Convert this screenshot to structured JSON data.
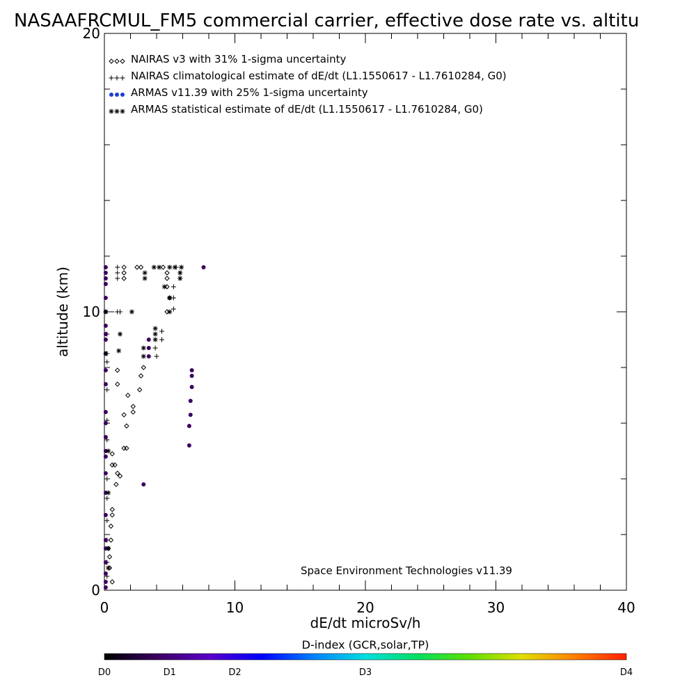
{
  "chart_data": {
    "type": "scatter",
    "title": "NASAAFRCMUL_FM5 commercial carrier, effective dose rate vs. altitu",
    "xlabel": "dE/dt microSv/h",
    "ylabel": "altitude (km)",
    "xlim": [
      0,
      40
    ],
    "ylim": [
      0,
      20
    ],
    "x_ticks": [
      0,
      10,
      20,
      30,
      40
    ],
    "x_tick_labels": [
      "0",
      "10",
      "20",
      "30",
      "40"
    ],
    "y_ticks": [
      0,
      10,
      20
    ],
    "y_tick_labels": [
      "0",
      "10",
      "20"
    ],
    "y_minor_step": 2,
    "x_minor_step": 2,
    "grid": false,
    "legend_position": "top-left",
    "legend": [
      {
        "symbol": "◇◇◇",
        "marker": "diamond",
        "color": "#000000",
        "label": "NAIRAS v3 with 31% 1-sigma uncertainty"
      },
      {
        "symbol": "+++",
        "marker": "plus",
        "color": "#000000",
        "label": "NAIRAS climatological estimate of dE/dt (L1.1550617 - L1.7610284, G0)"
      },
      {
        "symbol": "●●●",
        "marker": "dot",
        "color": "#1a3fd6",
        "label": "ARMAS v11.39 with 25% 1-sigma uncertainty"
      },
      {
        "symbol": "***",
        "marker": "asterisk",
        "color": "#000000",
        "label": "ARMAS statistical estimate of dE/dt (L1.1550617 - L1.7610284, G0)"
      }
    ],
    "annotation": "Space Environment Technologies v11.39",
    "colorbar": {
      "title": "D-index (GCR,solar,TP)",
      "labels": [
        {
          "label": "D0",
          "value": 0
        },
        {
          "label": "D1",
          "value": 1
        },
        {
          "label": "D2",
          "value": 2
        },
        {
          "label": "D3",
          "value": 3
        },
        {
          "label": "D4",
          "value": 4
        }
      ],
      "label_positions": [
        0,
        0.125,
        0.25,
        0.5,
        1.0
      ],
      "colors": [
        "#000000",
        "#3a0060",
        "#5a00c8",
        "#0000ff",
        "#0080ff",
        "#00e0e0",
        "#00e060",
        "#60e000",
        "#e0e000",
        "#ff8000",
        "#ff2000"
      ]
    },
    "series": [
      {
        "name": "NAIRAS v3",
        "marker": "diamond",
        "color": "#000000",
        "points": [
          [
            0.6,
            0.3
          ],
          [
            0.4,
            0.8
          ],
          [
            0.4,
            1.2
          ],
          [
            0.3,
            1.5
          ],
          [
            0.5,
            1.8
          ],
          [
            0.5,
            2.3
          ],
          [
            0.6,
            2.7
          ],
          [
            0.6,
            2.9
          ],
          [
            0.9,
            3.8
          ],
          [
            1.0,
            4.2
          ],
          [
            0.8,
            4.5
          ],
          [
            1.2,
            4.1
          ],
          [
            0.6,
            4.5
          ],
          [
            0.6,
            4.9
          ],
          [
            1.5,
            5.1
          ],
          [
            1.7,
            5.1
          ],
          [
            1.7,
            5.9
          ],
          [
            1.5,
            6.3
          ],
          [
            2.2,
            6.4
          ],
          [
            2.2,
            6.6
          ],
          [
            1.8,
            7.0
          ],
          [
            2.7,
            7.2
          ],
          [
            1.0,
            7.4
          ],
          [
            2.8,
            7.7
          ],
          [
            1.0,
            7.9
          ],
          [
            3.0,
            8.0
          ],
          [
            4.8,
            10.0
          ],
          [
            5.0,
            10.5
          ],
          [
            4.8,
            10.9
          ],
          [
            4.8,
            11.2
          ],
          [
            4.8,
            11.4
          ],
          [
            1.5,
            11.2
          ],
          [
            1.5,
            11.4
          ],
          [
            1.5,
            11.6
          ],
          [
            2.5,
            11.6
          ],
          [
            2.8,
            11.6
          ],
          [
            4.5,
            11.6
          ]
        ]
      },
      {
        "name": "NAIRAS climatological estimate",
        "marker": "plus",
        "color": "#000000",
        "points": [
          [
            0.2,
            0.5
          ],
          [
            0.2,
            1.0
          ],
          [
            0.2,
            1.8
          ],
          [
            0.2,
            2.5
          ],
          [
            0.2,
            3.3
          ],
          [
            0.2,
            4.0
          ],
          [
            0.2,
            5.4
          ],
          [
            0.2,
            6.1
          ],
          [
            0.2,
            7.2
          ],
          [
            0.2,
            8.2
          ],
          [
            0.2,
            8.5
          ],
          [
            0.2,
            9.2
          ],
          [
            1.0,
            10.0
          ],
          [
            1.2,
            10.0
          ],
          [
            1.0,
            11.4
          ],
          [
            1.0,
            11.2
          ],
          [
            1.0,
            11.6
          ],
          [
            4.0,
            8.4
          ],
          [
            3.9,
            8.7
          ],
          [
            4.4,
            9.0
          ],
          [
            4.4,
            9.3
          ],
          [
            5.3,
            10.1
          ],
          [
            5.3,
            10.5
          ],
          [
            5.3,
            10.9
          ],
          [
            5.8,
            11.2
          ],
          [
            5.8,
            11.4
          ],
          [
            5.5,
            11.6
          ]
        ]
      },
      {
        "name": "ARMAS v11.39",
        "marker": "dot",
        "color": "#3a0060",
        "points": [
          [
            0.1,
            0.1
          ],
          [
            0.1,
            0.3
          ],
          [
            0.1,
            0.6
          ],
          [
            0.1,
            1.0
          ],
          [
            0.1,
            1.5
          ],
          [
            0.1,
            1.8
          ],
          [
            0.1,
            2.7
          ],
          [
            0.1,
            3.5
          ],
          [
            0.1,
            4.2
          ],
          [
            0.1,
            4.8
          ],
          [
            0.1,
            5.0
          ],
          [
            0.1,
            5.5
          ],
          [
            0.1,
            6.0
          ],
          [
            0.1,
            6.4
          ],
          [
            0.1,
            7.4
          ],
          [
            0.1,
            7.9
          ],
          [
            0.1,
            8.5
          ],
          [
            0.1,
            9.0
          ],
          [
            0.1,
            9.2
          ],
          [
            0.1,
            9.5
          ],
          [
            0.1,
            10.0
          ],
          [
            0.1,
            10.5
          ],
          [
            0.1,
            11.0
          ],
          [
            0.1,
            11.2
          ],
          [
            0.1,
            11.4
          ],
          [
            0.1,
            11.6
          ],
          [
            3.0,
            3.8
          ],
          [
            6.5,
            5.2
          ],
          [
            6.5,
            5.9
          ],
          [
            6.6,
            6.3
          ],
          [
            6.6,
            6.8
          ],
          [
            6.7,
            7.3
          ],
          [
            6.7,
            7.7
          ],
          [
            6.7,
            7.9
          ],
          [
            3.4,
            8.4
          ],
          [
            3.4,
            8.7
          ],
          [
            3.4,
            9.0
          ],
          [
            7.6,
            11.6
          ]
        ]
      },
      {
        "name": "ARMAS statistical estimate",
        "marker": "asterisk",
        "color": "#000000",
        "points": [
          [
            0.3,
            0.8
          ],
          [
            0.3,
            1.5
          ],
          [
            0.3,
            3.5
          ],
          [
            0.3,
            5.0
          ],
          [
            0.1,
            8.5
          ],
          [
            0.1,
            10.0
          ],
          [
            2.1,
            10.0
          ],
          [
            1.2,
            9.2
          ],
          [
            1.1,
            8.6
          ],
          [
            3.0,
            8.4
          ],
          [
            3.0,
            8.7
          ],
          [
            3.9,
            9.0
          ],
          [
            3.9,
            9.2
          ],
          [
            3.9,
            9.4
          ],
          [
            5.0,
            10.0
          ],
          [
            4.6,
            10.9
          ],
          [
            5.0,
            10.5
          ],
          [
            3.1,
            11.2
          ],
          [
            3.1,
            11.4
          ],
          [
            5.8,
            11.2
          ],
          [
            5.8,
            11.4
          ],
          [
            3.8,
            11.6
          ],
          [
            4.2,
            11.6
          ],
          [
            5.0,
            11.6
          ],
          [
            5.4,
            11.6
          ],
          [
            5.9,
            11.6
          ]
        ]
      }
    ]
  }
}
